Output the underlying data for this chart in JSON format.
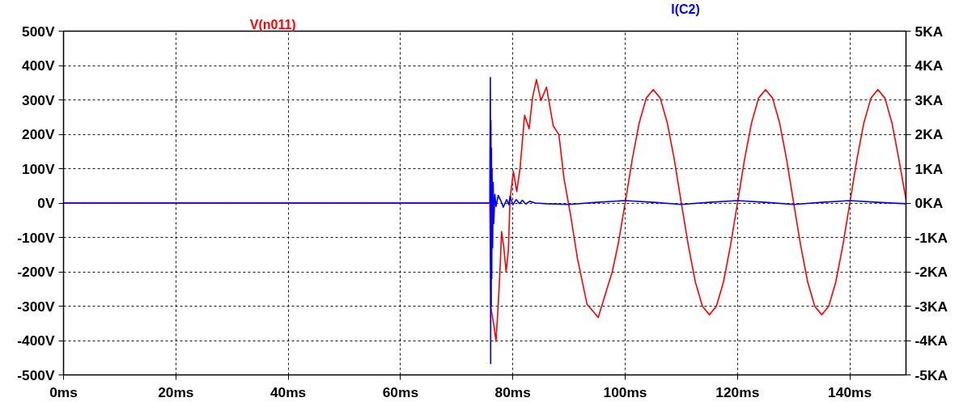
{
  "chart_data": {
    "type": "line",
    "grid": true,
    "xlim": [
      0,
      150
    ],
    "xticks": [
      {
        "value": 0,
        "label": "0ms"
      },
      {
        "value": 20,
        "label": "20ms"
      },
      {
        "value": 40,
        "label": "40ms"
      },
      {
        "value": 60,
        "label": "60ms"
      },
      {
        "value": 80,
        "label": "80ms"
      },
      {
        "value": 100,
        "label": "100ms"
      },
      {
        "value": 120,
        "label": "120ms"
      },
      {
        "value": 140,
        "label": "140ms"
      }
    ],
    "ylim": [
      -500,
      500
    ],
    "yticks": [
      {
        "value": -500,
        "label": "-500V"
      },
      {
        "value": -400,
        "label": "-400V"
      },
      {
        "value": -300,
        "label": "-300V"
      },
      {
        "value": -200,
        "label": "-200V"
      },
      {
        "value": -100,
        "label": "-100V"
      },
      {
        "value": 0,
        "label": "0V"
      },
      {
        "value": 100,
        "label": "100V"
      },
      {
        "value": 200,
        "label": "200V"
      },
      {
        "value": 300,
        "label": "300V"
      },
      {
        "value": 400,
        "label": "400V"
      },
      {
        "value": 500,
        "label": "500V"
      }
    ],
    "y2lim": [
      -5,
      5
    ],
    "y2ticks": [
      {
        "value": -5,
        "label": "-5KA"
      },
      {
        "value": -4,
        "label": "-4KA"
      },
      {
        "value": -3,
        "label": "-3KA"
      },
      {
        "value": -2,
        "label": "-2KA"
      },
      {
        "value": -1,
        "label": "-1KA"
      },
      {
        "value": 0,
        "label": "0KA"
      },
      {
        "value": 1,
        "label": "1KA"
      },
      {
        "value": 2,
        "label": "2KA"
      },
      {
        "value": 3,
        "label": "3KA"
      },
      {
        "value": 4,
        "label": "4KA"
      },
      {
        "value": 5,
        "label": "5KA"
      }
    ],
    "series": [
      {
        "name": "V(n011)",
        "color": "#ff0000",
        "x": [
          0,
          75.9,
          76.1,
          76.7,
          77.0,
          77.4,
          77.7,
          78.0,
          78.4,
          78.8,
          79.2,
          79.5,
          80.1,
          80.7,
          81.3,
          81.7,
          82.1,
          82.9,
          83.5,
          84.2,
          85.0,
          86.0,
          87.2,
          88.2,
          89.1,
          90.3,
          91.5,
          93.2,
          95.2,
          97.7,
          98.75,
          100,
          101.25,
          102.5,
          103.75,
          105,
          106.25,
          107.5,
          108.75,
          110,
          111.25,
          112.5,
          113.75,
          115,
          116.25,
          117.5,
          118.75,
          120,
          121.25,
          122.5,
          123.75,
          125,
          126.25,
          127.5,
          128.75,
          130,
          131.25,
          132.5,
          133.75,
          135,
          136.25,
          137.5,
          138.75,
          140,
          141.25,
          142.5,
          143.75,
          145,
          146.25,
          147.5,
          148.75,
          150
        ],
        "values": [
          0,
          0,
          -305,
          -364,
          -402,
          -294,
          -200,
          -83,
          -130,
          -200,
          -138,
          10,
          92,
          33,
          103,
          181,
          255,
          216,
          306,
          359,
          298,
          337,
          224,
          199,
          72,
          -37,
          -161,
          -294,
          -333,
          -200,
          -120,
          0,
          126,
          233,
          305,
          330,
          305,
          233,
          126,
          0,
          -124,
          -230,
          -300,
          -325,
          -300,
          -230,
          -124,
          0,
          126,
          233,
          305,
          330,
          305,
          233,
          126,
          0,
          -124,
          -230,
          -300,
          -325,
          -300,
          -230,
          -124,
          0,
          126,
          233,
          305,
          330,
          305,
          233,
          126,
          10
        ]
      },
      {
        "name": "I(C2)",
        "color": "#0000ff",
        "axis": "y2",
        "x": [
          0,
          75.9,
          76.0,
          76.05,
          76.1,
          76.15,
          76.2,
          76.25,
          76.3,
          76.4,
          76.5,
          76.6,
          76.8,
          77.0,
          77.4,
          77.9,
          78.3,
          78.9,
          79.3,
          79.5,
          80.0,
          80.6,
          81.2,
          81.7,
          82.3,
          83.0,
          84.0,
          86,
          90,
          95,
          100,
          105,
          110,
          115,
          120,
          125,
          130,
          135,
          140,
          145,
          150
        ],
        "values": [
          0,
          0,
          3.65,
          -4.67,
          2.4,
          -3.0,
          1.6,
          -2.2,
          1.0,
          -1.3,
          0.6,
          -0.6,
          0.25,
          -0.1,
          0.22,
          0.05,
          -0.12,
          0.1,
          -0.05,
          0.2,
          -0.05,
          0.1,
          -0.02,
          0.08,
          -0.03,
          0.05,
          0,
          -0.02,
          -0.04,
          0.02,
          0.07,
          0.02,
          -0.04,
          0.02,
          0.07,
          0.02,
          -0.04,
          0.02,
          0.07,
          0.02,
          -0.02
        ]
      }
    ]
  }
}
